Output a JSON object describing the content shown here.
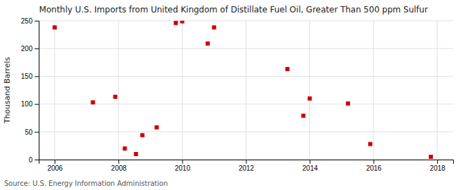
{
  "chart_data": {
    "type": "scatter",
    "title": "Monthly U.S. Imports from United Kingdom of Distillate Fuel Oil, Greater Than 500 ppm Sulfur",
    "ylabel": "Thousand Barrels",
    "source": "Source: U.S. Energy Information Administration",
    "x": [
      2006.0,
      2007.2,
      2007.9,
      2008.2,
      2008.55,
      2008.75,
      2009.2,
      2009.8,
      2010.0,
      2010.8,
      2011.0,
      2013.3,
      2013.8,
      2014.0,
      2015.2,
      2015.9,
      2017.8
    ],
    "values": [
      238,
      103,
      113,
      20,
      10,
      44,
      58,
      246,
      249,
      209,
      238,
      163,
      79,
      110,
      101,
      28,
      5
    ],
    "color": "#cc0000",
    "marker": "square",
    "xlim": [
      2005.5,
      2018.5
    ],
    "ylim": [
      0,
      250
    ],
    "xticks": [
      2006,
      2008,
      2010,
      2012,
      2014,
      2016,
      2018
    ],
    "yticks": [
      0,
      50,
      100,
      150,
      200,
      250
    ],
    "grid": true
  }
}
